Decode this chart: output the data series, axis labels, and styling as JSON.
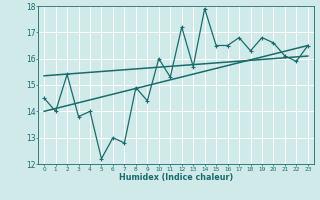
{
  "xlabel": "Humidex (Indice chaleur)",
  "xlim": [
    -0.5,
    23.5
  ],
  "ylim": [
    12,
    18
  ],
  "yticks": [
    12,
    13,
    14,
    15,
    16,
    17,
    18
  ],
  "xticks": [
    0,
    1,
    2,
    3,
    4,
    5,
    6,
    7,
    8,
    9,
    10,
    11,
    12,
    13,
    14,
    15,
    16,
    17,
    18,
    19,
    20,
    21,
    22,
    23
  ],
  "bg_color": "#d0eaea",
  "line_color": "#1a6b6b",
  "grid_color": "#b8d8d8",
  "data_x": [
    0,
    1,
    2,
    3,
    4,
    5,
    6,
    7,
    8,
    9,
    10,
    11,
    12,
    13,
    14,
    15,
    16,
    17,
    18,
    19,
    20,
    21,
    22,
    23
  ],
  "data_y": [
    14.5,
    14.0,
    15.4,
    13.8,
    14.0,
    12.2,
    13.0,
    12.8,
    14.9,
    14.4,
    16.0,
    15.3,
    17.2,
    15.7,
    17.9,
    16.5,
    16.5,
    16.8,
    16.3,
    16.8,
    16.6,
    16.1,
    15.9,
    16.5
  ],
  "trend1_x": [
    0,
    23
  ],
  "trend1_y": [
    15.35,
    16.1
  ],
  "trend2_x": [
    0,
    23
  ],
  "trend2_y": [
    14.0,
    16.5
  ]
}
